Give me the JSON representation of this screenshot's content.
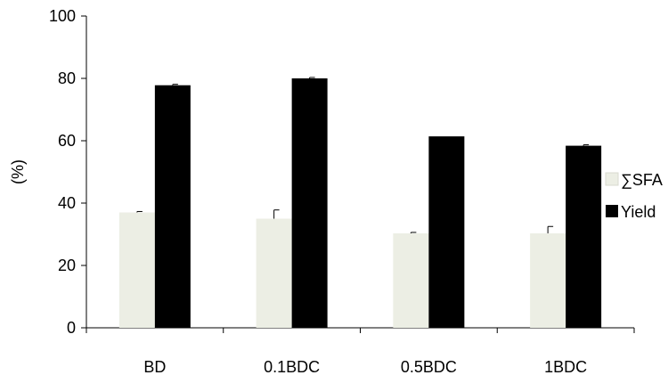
{
  "chart_data": {
    "type": "bar",
    "title": "",
    "xlabel": "",
    "ylabel": "(%)",
    "ylim": [
      0,
      100
    ],
    "yticks": [
      0,
      20,
      40,
      60,
      80,
      100
    ],
    "grid": false,
    "legend_position": "right",
    "categories": [
      "BD",
      "0.1BDC",
      "0.5BDC",
      "1BDC"
    ],
    "series": [
      {
        "name": "∑SFA",
        "color": "#eceee4",
        "values": [
          37.0,
          35.0,
          30.3,
          30.3
        ],
        "errors": [
          0.3,
          2.8,
          0.3,
          2.2
        ]
      },
      {
        "name": "Yield",
        "color": "#000000",
        "values": [
          77.8,
          80.0,
          61.4,
          58.4
        ],
        "errors": [
          0.3,
          0.3,
          0.0,
          0.3
        ]
      }
    ]
  }
}
